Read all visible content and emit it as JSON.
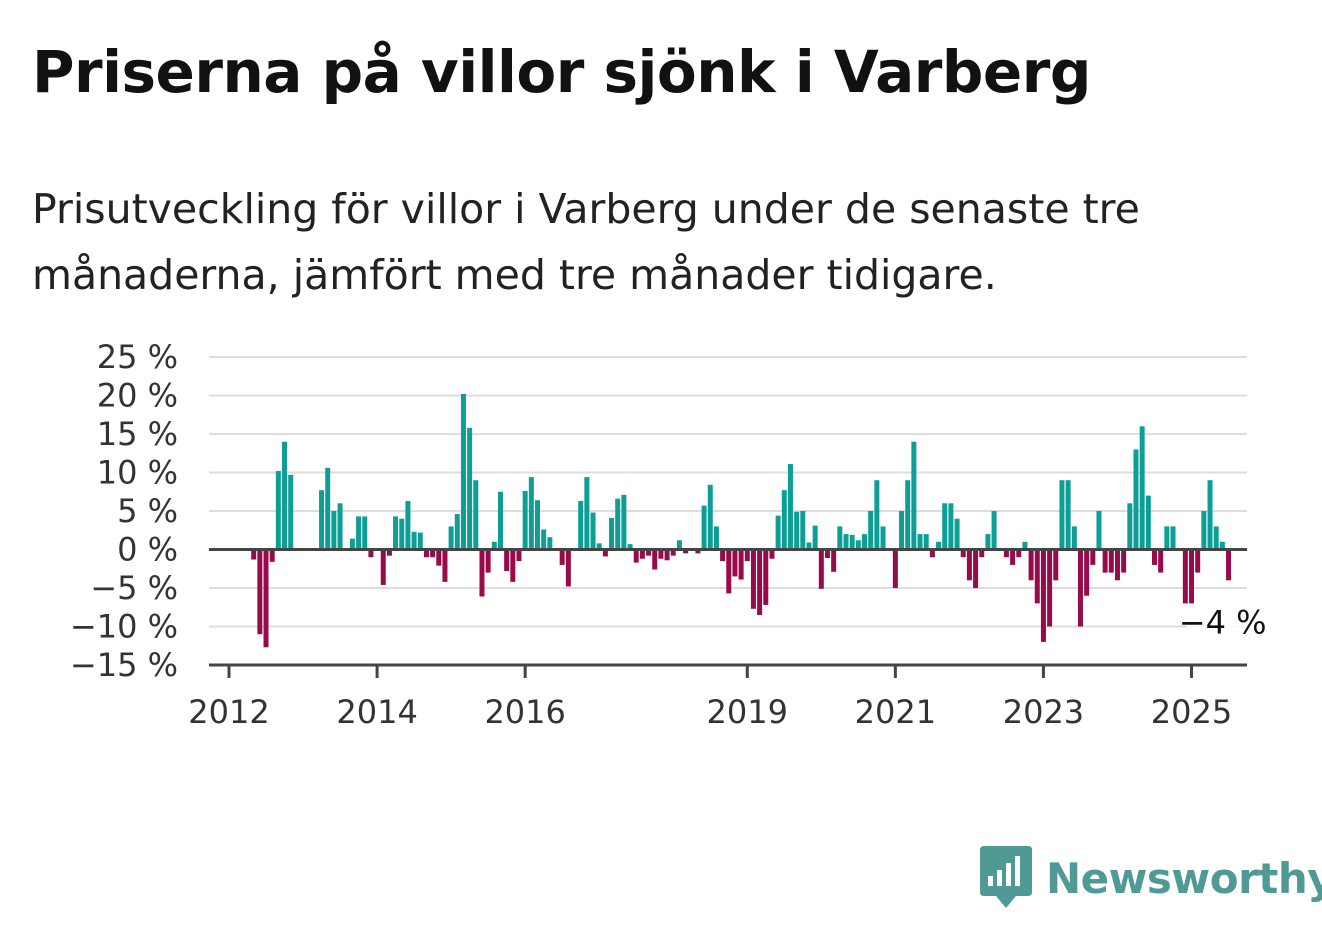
{
  "title": "Priserna på villor sjönk i Varberg",
  "subtitle": "Prisutveckling för villor i Varberg under de senaste tre månaderna, jämfört med tre månader tidigare.",
  "brand": {
    "name": "Newsworthy",
    "icon": "newsworthy-logo-icon",
    "color": "#4f9a94"
  },
  "colors": {
    "positive": "#0d9e96",
    "negative": "#990a4a",
    "grid": "#dddddd",
    "axis": "#444444"
  },
  "chart_data": {
    "type": "bar",
    "title": "",
    "xlabel": "",
    "ylabel": "",
    "ylim": [
      -15,
      25
    ],
    "y_ticks": [
      25,
      20,
      15,
      10,
      5,
      0,
      -5,
      -10,
      -15
    ],
    "y_tick_labels": [
      "25 %",
      "20 %",
      "15 %",
      "10 %",
      "5 %",
      "0 %",
      "−5 %",
      "−10 %",
      "−15 %"
    ],
    "x_ticks": [
      "2012",
      "2014",
      "2016",
      "2019",
      "2021",
      "2023",
      "2025"
    ],
    "grid": true,
    "legend": "none",
    "last_value_label": "−4 %",
    "series": [
      {
        "name": "",
        "values": [
          0,
          0,
          0,
          0,
          -1.3,
          -11,
          -12.7,
          -1.6,
          10.2,
          14,
          9.7,
          0,
          0,
          0,
          0,
          7.7,
          10.6,
          5,
          6,
          0,
          1.4,
          4.3,
          4.3,
          -1,
          0,
          -4.6,
          -0.8,
          4.3,
          4,
          6.3,
          2.3,
          2.2,
          -1,
          -1,
          -2.1,
          -4.2,
          3,
          4.6,
          20.2,
          15.8,
          9,
          -6.1,
          -3,
          1,
          7.5,
          -2.8,
          -4.2,
          -1.5,
          7.6,
          9.4,
          6.4,
          2.6,
          1.6,
          0,
          -2,
          -4.8,
          0,
          6.3,
          9.4,
          4.8,
          0.8,
          -0.9,
          4.1,
          6.6,
          7.1,
          0.7,
          -1.7,
          -1.2,
          -0.8,
          -2.6,
          -1.2,
          -1.4,
          -0.8,
          1.2,
          -0.5,
          0,
          -0.5,
          5.7,
          8.4,
          3,
          -1.5,
          -5.7,
          -3.5,
          -3.9,
          -1.5,
          -7.7,
          -8.5,
          -7.2,
          -1.2,
          4.4,
          7.7,
          11.1,
          4.9,
          5,
          0.9,
          3.1,
          -5.1,
          -1.1,
          -2.9,
          3,
          2,
          1.9,
          1.2,
          2,
          5,
          9,
          3,
          0,
          -5,
          5,
          9,
          14,
          2,
          2,
          -1,
          1,
          6,
          6,
          4,
          -1,
          -4,
          -5,
          -1,
          2,
          5,
          0,
          -1,
          -2,
          -1,
          1,
          -4,
          -7,
          -12,
          -10,
          -4,
          9,
          9,
          3,
          -10,
          -6,
          -2,
          5,
          -3,
          -3,
          -4,
          -3,
          6,
          13,
          16,
          7,
          -2,
          -3,
          3,
          3,
          0,
          -7,
          -7,
          -3,
          5,
          9,
          3,
          1,
          -4
        ]
      }
    ]
  }
}
